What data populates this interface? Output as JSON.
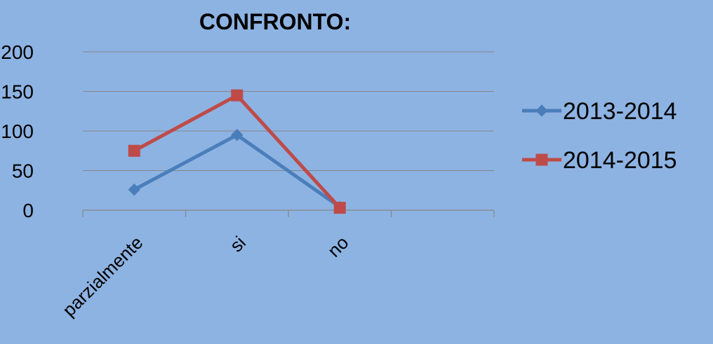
{
  "chart_data": {
    "type": "line",
    "title": "CONFRONTO:",
    "categories": [
      "parzialmente",
      "si",
      "no"
    ],
    "series": [
      {
        "name": "2013-2014",
        "values": [
          26,
          95,
          4
        ],
        "color": "#4a7ebb",
        "marker": "diamond"
      },
      {
        "name": "2014-2015",
        "values": [
          75,
          145,
          3
        ],
        "color": "#be4b48",
        "marker": "square"
      }
    ],
    "ylim": [
      0,
      200
    ],
    "yticks": [
      0,
      50,
      100,
      150,
      200
    ],
    "grid": true,
    "legend_position": "right"
  }
}
